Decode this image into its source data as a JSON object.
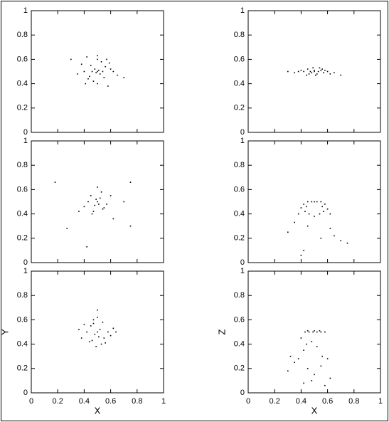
{
  "chart_data": [
    {
      "type": "scatter",
      "color": "#000000",
      "xlim": [
        0,
        1
      ],
      "ylim": [
        0,
        1
      ],
      "xticks": [
        0,
        0.2,
        0.4,
        0.6,
        0.8,
        1
      ],
      "yticks": [
        0,
        0.2,
        0.4,
        0.6,
        0.8,
        1
      ],
      "x": [
        0.5,
        0.48,
        0.52,
        0.45,
        0.55,
        0.5,
        0.47,
        0.53,
        0.4,
        0.6,
        0.42,
        0.58,
        0.35,
        0.65,
        0.5,
        0.44,
        0.56,
        0.38,
        0.62,
        0.49,
        0.51,
        0.46,
        0.54,
        0.3,
        0.7,
        0.43,
        0.57,
        0.5,
        0.41,
        0.59
      ],
      "values": [
        0.5,
        0.52,
        0.48,
        0.55,
        0.45,
        0.6,
        0.42,
        0.58,
        0.5,
        0.52,
        0.62,
        0.38,
        0.48,
        0.47,
        0.4,
        0.46,
        0.54,
        0.56,
        0.5,
        0.49,
        0.51,
        0.5,
        0.5,
        0.6,
        0.45,
        0.44,
        0.6,
        0.63,
        0.4,
        0.57
      ]
    },
    {
      "type": "scatter",
      "color": "#000000",
      "xlim": [
        0,
        1
      ],
      "ylim": [
        0,
        1
      ],
      "xticks": [
        0,
        0.2,
        0.4,
        0.6,
        0.8,
        1
      ],
      "yticks": [
        0,
        0.2,
        0.4,
        0.6,
        0.8,
        1
      ],
      "x": [
        0.3,
        0.35,
        0.4,
        0.42,
        0.45,
        0.47,
        0.48,
        0.5,
        0.5,
        0.52,
        0.53,
        0.55,
        0.57,
        0.6,
        0.62,
        0.65,
        0.7,
        0.44,
        0.49,
        0.51,
        0.56,
        0.38,
        0.46,
        0.54,
        0.58
      ],
      "values": [
        0.5,
        0.49,
        0.51,
        0.5,
        0.52,
        0.5,
        0.49,
        0.5,
        0.51,
        0.48,
        0.5,
        0.51,
        0.49,
        0.5,
        0.48,
        0.49,
        0.47,
        0.47,
        0.53,
        0.47,
        0.52,
        0.5,
        0.48,
        0.53,
        0.51
      ]
    },
    {
      "type": "scatter",
      "color": "#000000",
      "xlim": [
        0,
        1
      ],
      "ylim": [
        0,
        1
      ],
      "xticks": [
        0,
        0.2,
        0.4,
        0.6,
        0.8,
        1
      ],
      "yticks": [
        0,
        0.2,
        0.4,
        0.6,
        0.8,
        1
      ],
      "x": [
        0.5,
        0.48,
        0.52,
        0.45,
        0.55,
        0.47,
        0.53,
        0.43,
        0.57,
        0.5,
        0.4,
        0.6,
        0.46,
        0.54,
        0.49,
        0.51,
        0.18,
        0.75,
        0.27,
        0.75,
        0.42,
        0.7,
        0.36,
        0.62
      ],
      "values": [
        0.5,
        0.47,
        0.53,
        0.55,
        0.45,
        0.42,
        0.58,
        0.5,
        0.48,
        0.62,
        0.46,
        0.55,
        0.4,
        0.44,
        0.52,
        0.48,
        0.66,
        0.66,
        0.28,
        0.3,
        0.13,
        0.5,
        0.42,
        0.36
      ]
    },
    {
      "type": "scatter",
      "color": "#000000",
      "xlim": [
        0,
        1
      ],
      "ylim": [
        0,
        1
      ],
      "xticks": [
        0,
        0.2,
        0.4,
        0.6,
        0.8,
        1
      ],
      "yticks": [
        0,
        0.2,
        0.4,
        0.6,
        0.8,
        1
      ],
      "x": [
        0.42,
        0.45,
        0.48,
        0.5,
        0.52,
        0.55,
        0.58,
        0.4,
        0.44,
        0.56,
        0.6,
        0.43,
        0.57,
        0.46,
        0.54,
        0.5,
        0.38,
        0.62,
        0.3,
        0.35,
        0.45,
        0.62,
        0.65,
        0.7,
        0.75,
        0.42,
        0.4,
        0.55
      ],
      "values": [
        0.48,
        0.5,
        0.5,
        0.5,
        0.5,
        0.5,
        0.48,
        0.45,
        0.46,
        0.46,
        0.44,
        0.42,
        0.42,
        0.4,
        0.4,
        0.38,
        0.4,
        0.4,
        0.25,
        0.33,
        0.3,
        0.28,
        0.22,
        0.18,
        0.16,
        0.1,
        0.06,
        0.2
      ]
    },
    {
      "type": "scatter",
      "color": "#000000",
      "xlim": [
        0,
        1
      ],
      "ylim": [
        0,
        1
      ],
      "xticks": [
        0,
        0.2,
        0.4,
        0.6,
        0.8,
        1
      ],
      "yticks": [
        0,
        0.2,
        0.4,
        0.6,
        0.8,
        1
      ],
      "xlabel": "X",
      "ylabel": "Y",
      "x": [
        0.5,
        0.48,
        0.52,
        0.45,
        0.55,
        0.47,
        0.53,
        0.42,
        0.58,
        0.5,
        0.4,
        0.6,
        0.36,
        0.64,
        0.46,
        0.54,
        0.49,
        0.51,
        0.44,
        0.56,
        0.5,
        0.38,
        0.62,
        0.47
      ],
      "values": [
        0.5,
        0.48,
        0.52,
        0.55,
        0.45,
        0.6,
        0.4,
        0.5,
        0.5,
        0.68,
        0.56,
        0.47,
        0.52,
        0.5,
        0.43,
        0.58,
        0.38,
        0.46,
        0.42,
        0.41,
        0.62,
        0.45,
        0.53,
        0.57
      ]
    },
    {
      "type": "scatter",
      "color": "#000000",
      "xlim": [
        0,
        1
      ],
      "ylim": [
        0,
        1
      ],
      "xticks": [
        0,
        0.2,
        0.4,
        0.6,
        0.8,
        1
      ],
      "yticks": [
        0,
        0.2,
        0.4,
        0.6,
        0.8,
        1
      ],
      "xlabel": "X",
      "ylabel": "Z",
      "x": [
        0.43,
        0.46,
        0.49,
        0.52,
        0.55,
        0.58,
        0.45,
        0.5,
        0.54,
        0.4,
        0.44,
        0.48,
        0.52,
        0.42,
        0.56,
        0.3,
        0.35,
        0.38,
        0.45,
        0.5,
        0.55,
        0.6,
        0.62,
        0.32,
        0.48,
        0.58,
        0.42
      ],
      "values": [
        0.5,
        0.5,
        0.5,
        0.5,
        0.5,
        0.5,
        0.51,
        0.51,
        0.51,
        0.45,
        0.4,
        0.42,
        0.38,
        0.35,
        0.3,
        0.18,
        0.25,
        0.28,
        0.2,
        0.15,
        0.22,
        0.28,
        0.12,
        0.3,
        0.1,
        0.06,
        0.08
      ]
    }
  ]
}
